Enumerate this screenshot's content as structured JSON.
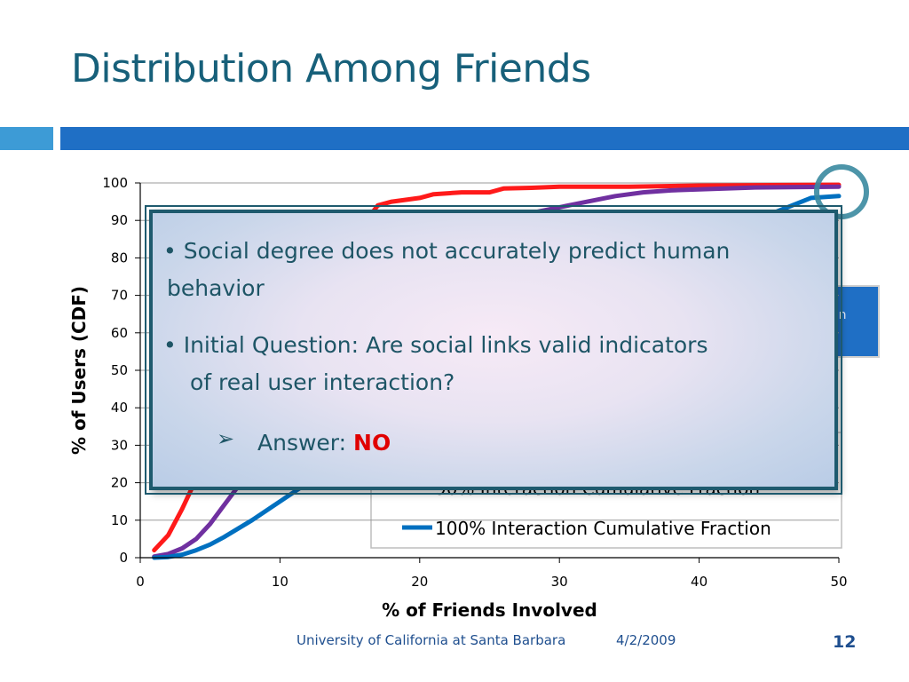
{
  "slide": {
    "title": "Distribution Among Friends",
    "footer_org": "University of California at Santa Barbara",
    "footer_date": "4/2/2009",
    "slide_number": "12"
  },
  "callout": {
    "bullet1_line1": "Social degree does not accurately predict  human",
    "bullet1_line2": "behavior",
    "bullet2_line1": "Initial Question: Are social links valid indicators",
    "bullet2_line2": "of real user interaction?",
    "answer_label": "Answer:",
    "answer_value": "NO"
  },
  "partial_legend_text": "on",
  "chart_data": {
    "type": "line",
    "title": "",
    "xlabel": "% of Friends Involved",
    "ylabel": "% of Users (CDF)",
    "xlim": [
      0,
      50
    ],
    "ylim": [
      0,
      100
    ],
    "x_ticks": [
      "0",
      "10",
      "20",
      "30",
      "40",
      "50"
    ],
    "y_ticks": [
      "0",
      "10",
      "20",
      "30",
      "40",
      "50",
      "60",
      "70",
      "80",
      "90",
      "100"
    ],
    "grid": "horizontal",
    "legend": "bottom-right",
    "series": [
      {
        "name": "",
        "color": "#ff1a1a",
        "points": [
          [
            1,
            2
          ],
          [
            2,
            6
          ],
          [
            3,
            13
          ],
          [
            4,
            21
          ],
          [
            5,
            28
          ],
          [
            6,
            36
          ],
          [
            8,
            50
          ],
          [
            10,
            63
          ],
          [
            12,
            73
          ],
          [
            14,
            82
          ],
          [
            16,
            89
          ],
          [
            17,
            94
          ],
          [
            18,
            95
          ],
          [
            19,
            95.5
          ],
          [
            20,
            96
          ],
          [
            21,
            97
          ],
          [
            23,
            97.5
          ],
          [
            25,
            97.5
          ],
          [
            26,
            98.5
          ],
          [
            28,
            98.7
          ],
          [
            30,
            99
          ],
          [
            35,
            99
          ],
          [
            40,
            99.3
          ],
          [
            50,
            99.5
          ]
        ]
      },
      {
        "name": "90% Interaction Cumulative Fraction",
        "color": "#7030a0",
        "points": [
          [
            1,
            0.3
          ],
          [
            2,
            1
          ],
          [
            3,
            2.5
          ],
          [
            4,
            5
          ],
          [
            5,
            9
          ],
          [
            6,
            14
          ],
          [
            7,
            19
          ],
          [
            8,
            25
          ],
          [
            10,
            35
          ],
          [
            12,
            45
          ],
          [
            15,
            58
          ],
          [
            18,
            70
          ],
          [
            20,
            76
          ],
          [
            23,
            83
          ],
          [
            26,
            89
          ],
          [
            28,
            92
          ],
          [
            30,
            93.5
          ],
          [
            32,
            95
          ],
          [
            34,
            96.5
          ],
          [
            36,
            97.5
          ],
          [
            38,
            98
          ],
          [
            40,
            98.3
          ],
          [
            44,
            98.8
          ],
          [
            50,
            99
          ]
        ]
      },
      {
        "name": "100% Interaction Cumulative Fraction",
        "color": "#0070c0",
        "points": [
          [
            1,
            0
          ],
          [
            2,
            0.2
          ],
          [
            3,
            0.8
          ],
          [
            4,
            2
          ],
          [
            5,
            3.5
          ],
          [
            6,
            5.5
          ],
          [
            8,
            10
          ],
          [
            10,
            15
          ],
          [
            12,
            20
          ],
          [
            15,
            28
          ],
          [
            18,
            36
          ],
          [
            20,
            42
          ],
          [
            23,
            50
          ],
          [
            26,
            58
          ],
          [
            30,
            67
          ],
          [
            33,
            73
          ],
          [
            36,
            79
          ],
          [
            38,
            82
          ],
          [
            40,
            85
          ],
          [
            42,
            88
          ],
          [
            44,
            90
          ],
          [
            46,
            93
          ],
          [
            48,
            96
          ],
          [
            50,
            96.5
          ]
        ]
      }
    ],
    "legend_labels": {
      "purple_partial": "90% Interaction Cumulative Fraction",
      "blue": "100% Interaction Cumulative Fraction"
    }
  }
}
